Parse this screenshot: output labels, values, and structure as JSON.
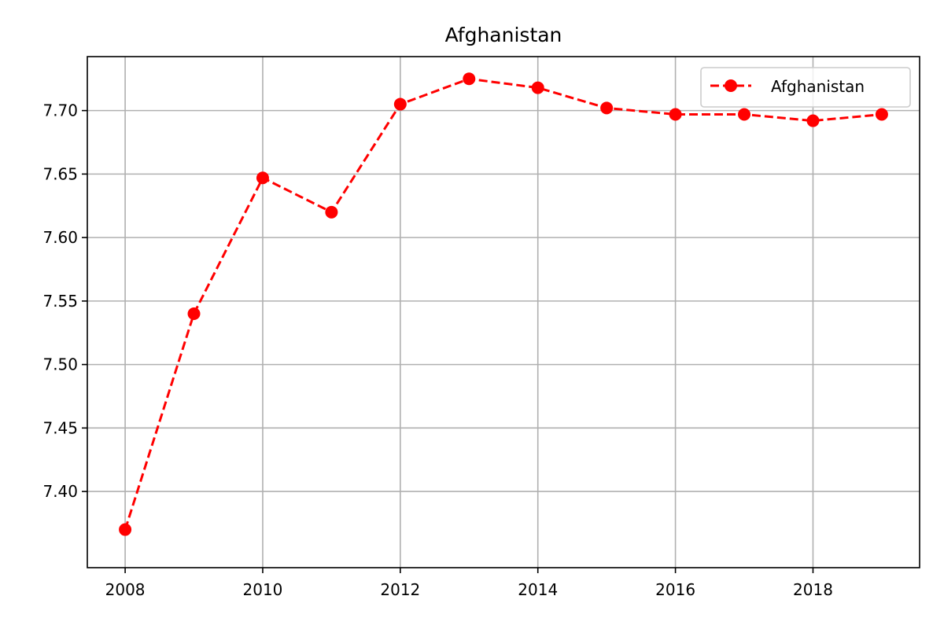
{
  "chart_data": {
    "type": "line",
    "title": "Afghanistan",
    "xlabel": "",
    "ylabel": "",
    "x": [
      2008,
      2009,
      2010,
      2011,
      2012,
      2013,
      2014,
      2015,
      2016,
      2017,
      2018,
      2019
    ],
    "series": [
      {
        "name": "Afghanistan",
        "values": [
          7.37,
          7.54,
          7.647,
          7.62,
          7.705,
          7.725,
          7.718,
          7.702,
          7.697,
          7.697,
          7.692,
          7.697
        ],
        "color": "#ff0000",
        "line_style": "dashed",
        "marker": "circle"
      }
    ],
    "xlim": [
      2007.45,
      2019.55
    ],
    "ylim": [
      7.34,
      7.7425
    ],
    "x_ticks": [
      2008,
      2010,
      2012,
      2014,
      2016,
      2018
    ],
    "x_tick_labels": [
      "2008",
      "2010",
      "2012",
      "2014",
      "2016",
      "2018"
    ],
    "y_ticks": [
      7.4,
      7.45,
      7.5,
      7.55,
      7.6,
      7.65,
      7.7
    ],
    "y_tick_labels": [
      "7.40",
      "7.45",
      "7.50",
      "7.55",
      "7.60",
      "7.65",
      "7.70"
    ],
    "grid": true,
    "legend_position": "top-right"
  }
}
